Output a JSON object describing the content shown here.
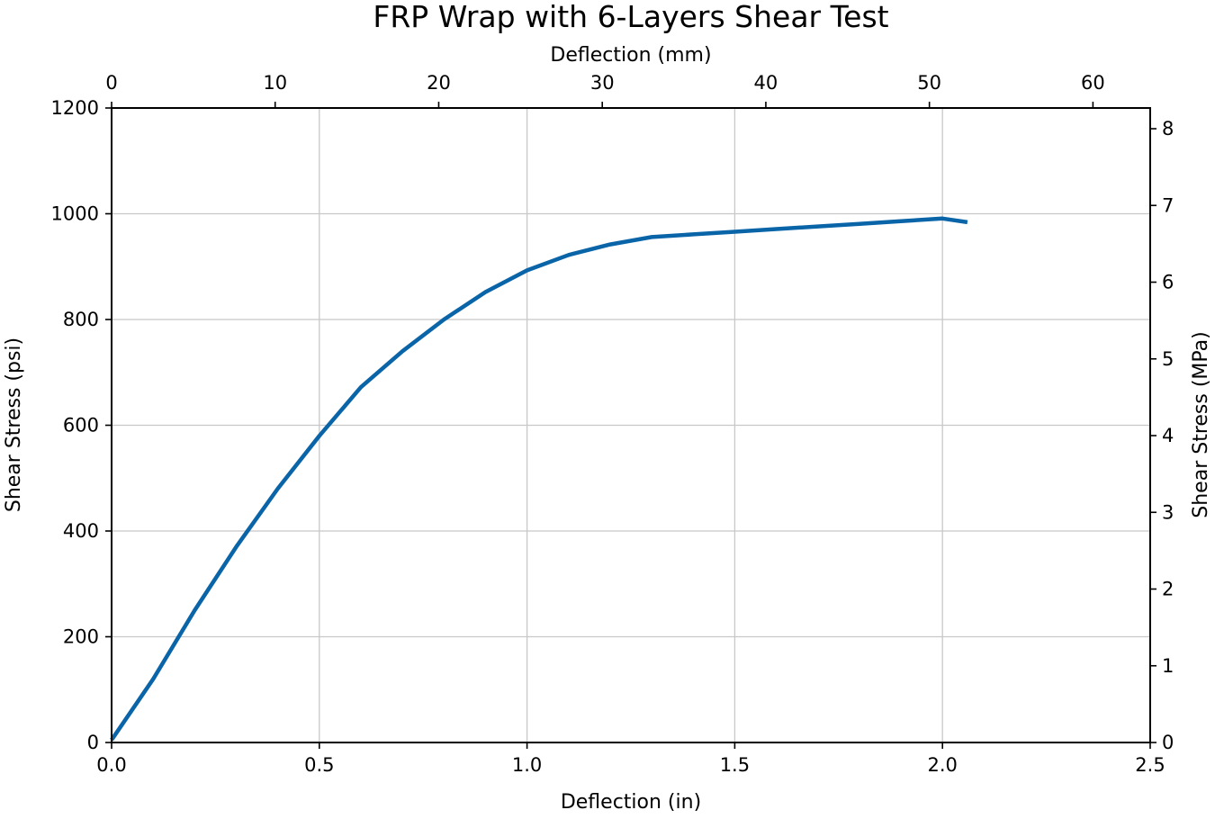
{
  "chart_data": {
    "type": "line",
    "title": "FRP Wrap with 6-Layers Shear Test",
    "xlabel": "Deflection (in)",
    "ylabel": "Shear Stress (psi)",
    "x2label": "Deflection (mm)",
    "y2label": "Shear Stress (MPa)",
    "xlim": [
      0,
      2.5
    ],
    "ylim": [
      0,
      1200
    ],
    "x2lim": [
      0,
      63.5
    ],
    "y2lim": [
      0,
      8.27
    ],
    "xticks": [
      "0.0",
      "0.5",
      "1.0",
      "1.5",
      "2.0",
      "2.5"
    ],
    "xtick_values": [
      0,
      0.5,
      1.0,
      1.5,
      2.0,
      2.5
    ],
    "yticks": [
      "0",
      "200",
      "400",
      "600",
      "800",
      "1000",
      "1200"
    ],
    "ytick_values": [
      0,
      200,
      400,
      600,
      800,
      1000,
      1200
    ],
    "x2ticks": [
      "0",
      "10",
      "20",
      "30",
      "40",
      "50",
      "60"
    ],
    "x2tick_values": [
      0,
      10,
      20,
      30,
      40,
      50,
      60
    ],
    "y2ticks": [
      "0",
      "1",
      "2",
      "3",
      "4",
      "5",
      "6",
      "7",
      "8"
    ],
    "y2tick_values": [
      0,
      1,
      2,
      3,
      4,
      5,
      6,
      7,
      8
    ],
    "grid": true,
    "line_color": "#0a64a8",
    "series": [
      {
        "x": [
          0,
          0.1,
          0.2,
          0.3,
          0.4,
          0.5,
          0.6,
          0.7,
          0.8,
          0.9,
          1.0,
          1.1,
          1.2,
          1.3,
          1.4,
          1.5,
          1.6,
          1.7,
          1.8,
          1.9,
          2.0,
          2.06
        ],
        "y": [
          5,
          120,
          250,
          370,
          480,
          580,
          672,
          740,
          800,
          852,
          893,
          922,
          942,
          956,
          961,
          966,
          971,
          976,
          981,
          986,
          991,
          984
        ]
      }
    ]
  }
}
